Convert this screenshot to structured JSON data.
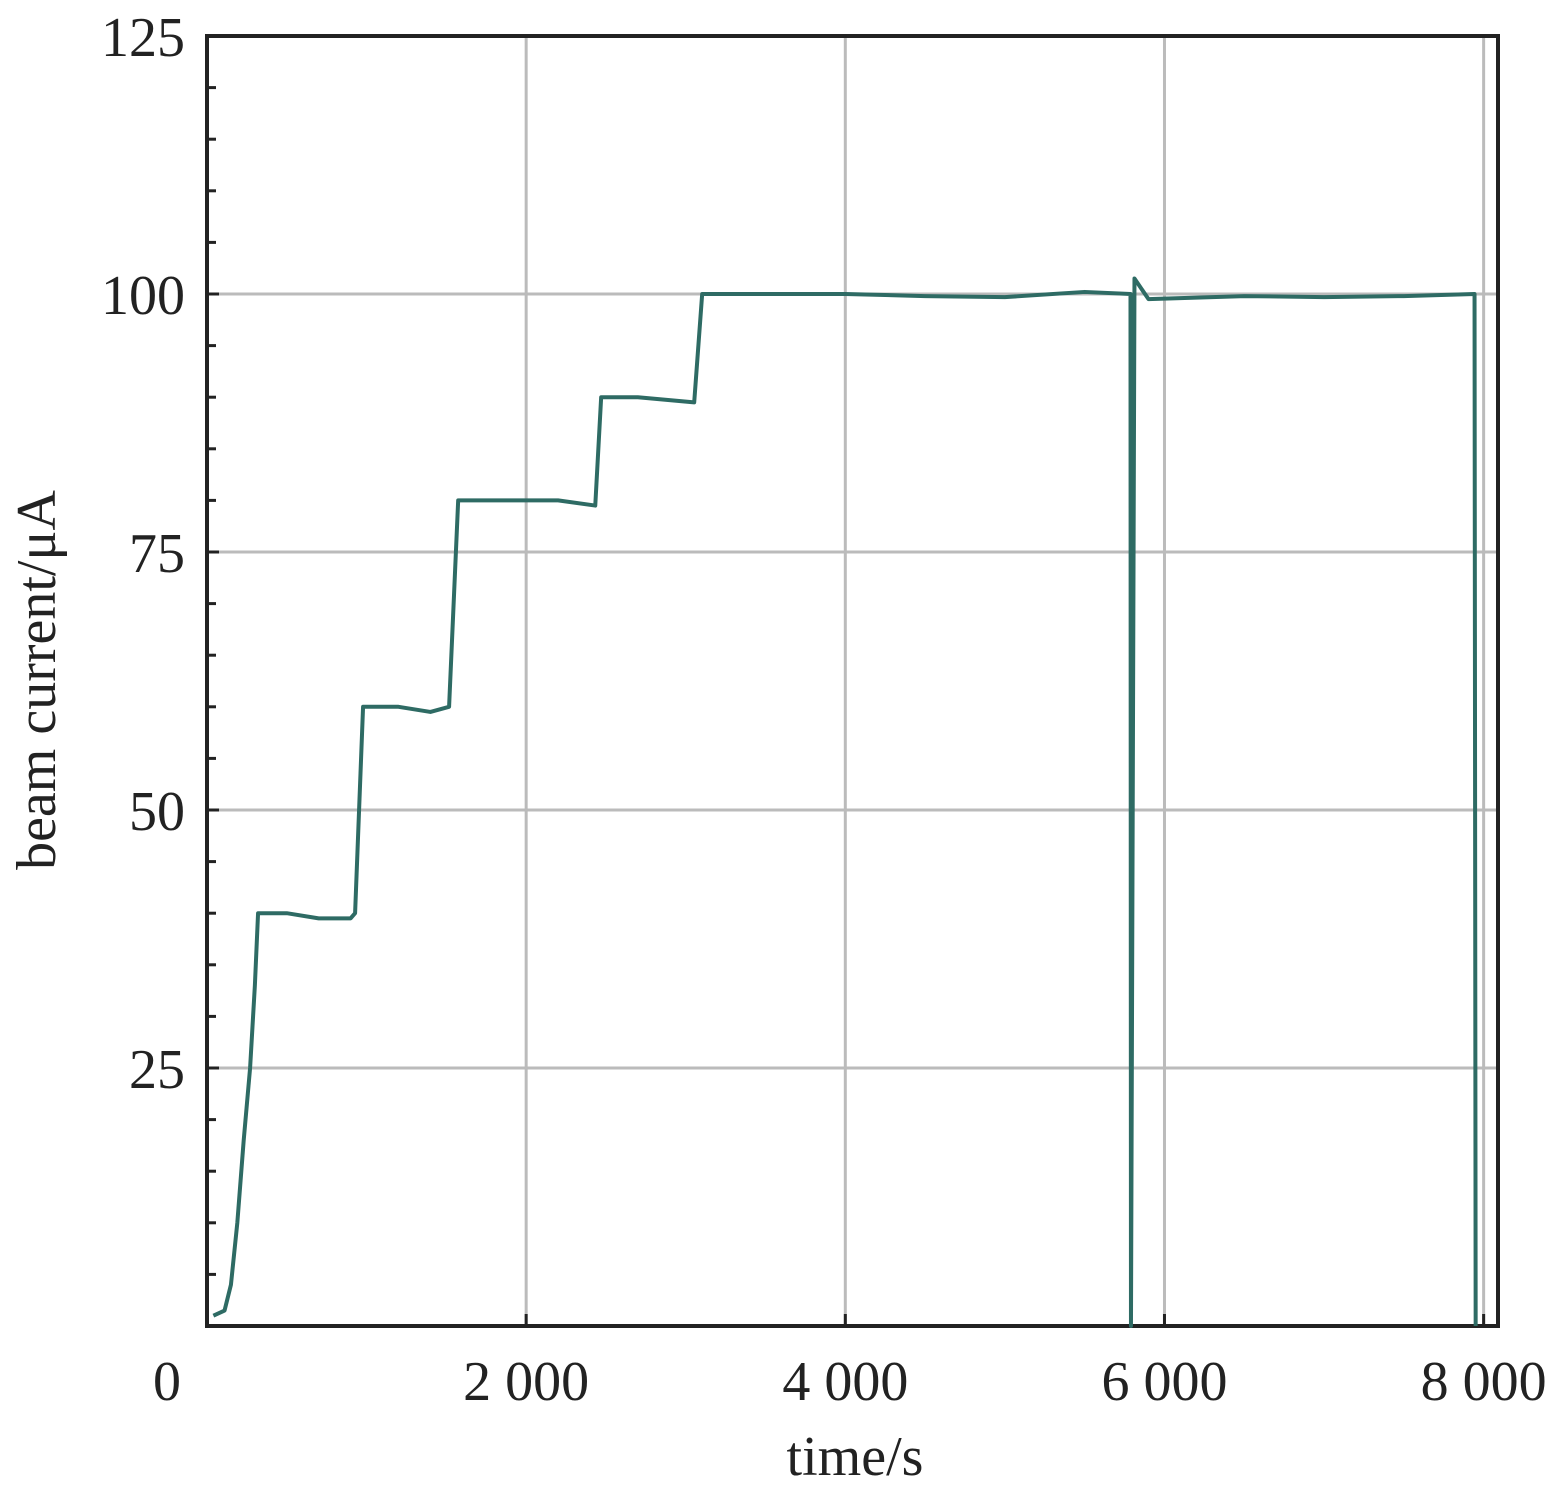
{
  "chart_data": {
    "type": "line",
    "xlabel": "time/s",
    "ylabel": "beam current/μA",
    "xlim": [
      0,
      8090
    ],
    "ylim": [
      0,
      125
    ],
    "xticks": [
      0,
      {
        "value": 2000,
        "label": "2 000"
      },
      {
        "value": 4000,
        "label": "4 000"
      },
      {
        "value": 6000,
        "label": "6 000"
      },
      {
        "value": 8000,
        "label": "8 000"
      }
    ],
    "yticks": [
      25,
      50,
      75,
      100,
      125
    ],
    "yminorticks": [
      5,
      10,
      15,
      20,
      30,
      35,
      40,
      45,
      55,
      60,
      65,
      70,
      80,
      85,
      90,
      95,
      105,
      110,
      115,
      120
    ],
    "grid": true,
    "series": [
      {
        "name": "beam current",
        "color": "#2e6b64",
        "x": [
          40,
          110,
          150,
          190,
          230,
          270,
          300,
          320,
          500,
          700,
          900,
          928,
          978,
          1200,
          1400,
          1517,
          1574,
          1593,
          1900,
          2200,
          2433,
          2470,
          2700,
          3053,
          3103,
          3500,
          4000,
          4500,
          5000,
          5500,
          5787,
          5790,
          5812,
          5900,
          6500,
          7000,
          7500,
          7943,
          7950
        ],
        "values": [
          1,
          1.5,
          4,
          10,
          18,
          25,
          33,
          40,
          40,
          39.5,
          39.5,
          40,
          60,
          60,
          59.5,
          60,
          80,
          80,
          80,
          80,
          79.5,
          90,
          90,
          89.5,
          100,
          100,
          100,
          99.8,
          99.7,
          100.2,
          100,
          0,
          101.5,
          99.5,
          99.8,
          99.7,
          99.8,
          100,
          0
        ]
      }
    ]
  }
}
